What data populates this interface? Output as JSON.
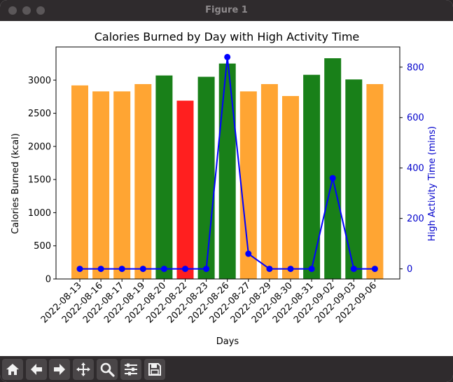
{
  "window": {
    "title": "Figure 1"
  },
  "toolbar": {
    "buttons": [
      {
        "name": "home-button",
        "icon": "home-icon"
      },
      {
        "name": "back-button",
        "icon": "arrow-left-icon"
      },
      {
        "name": "forward-button",
        "icon": "arrow-right-icon"
      },
      {
        "name": "pan-button",
        "icon": "move-icon"
      },
      {
        "name": "zoom-button",
        "icon": "magnifier-icon"
      },
      {
        "name": "configure-subplots-button",
        "icon": "sliders-icon"
      },
      {
        "name": "save-button",
        "icon": "floppy-disk-icon"
      }
    ]
  },
  "chart_data": {
    "type": "bar",
    "title": "Calories Burned by Day with High Activity Time",
    "xlabel": "Days",
    "ylabel": "Calories Burned (kcal)",
    "y2label": "High Activity Time (mins)",
    "categories": [
      "2022-08-13",
      "2022-08-16",
      "2022-08-17",
      "2022-08-19",
      "2022-08-20",
      "2022-08-22",
      "2022-08-23",
      "2022-08-26",
      "2022-08-27",
      "2022-08-29",
      "2022-08-30",
      "2022-08-31",
      "2022-09-02",
      "2022-09-03",
      "2022-09-06"
    ],
    "ylim": [
      0,
      3500
    ],
    "y2lim": [
      -40,
      880
    ],
    "yticks": [
      0,
      500,
      1000,
      1500,
      2000,
      2500,
      3000
    ],
    "y2ticks": [
      0,
      200,
      400,
      600,
      800
    ],
    "grid": false,
    "series": [
      {
        "axis": "left",
        "kind": "bar",
        "values": [
          2920,
          2830,
          2830,
          2940,
          3070,
          2690,
          3050,
          3250,
          2830,
          2940,
          2760,
          3080,
          3330,
          3010,
          2940
        ],
        "colors": [
          "orange",
          "orange",
          "orange",
          "orange",
          "green",
          "red",
          "green",
          "green",
          "orange",
          "orange",
          "orange",
          "green",
          "green",
          "green",
          "orange"
        ]
      },
      {
        "axis": "right",
        "kind": "line",
        "values": [
          0,
          0,
          0,
          0,
          0,
          0,
          0,
          840,
          60,
          0,
          0,
          0,
          360,
          0,
          0
        ],
        "color": "#0000ff"
      }
    ],
    "colors": {
      "orange": "#ffa533",
      "green": "#198019",
      "red": "#ff1f1f",
      "line": "#0000ff",
      "right_axis": "#0000cc"
    }
  }
}
